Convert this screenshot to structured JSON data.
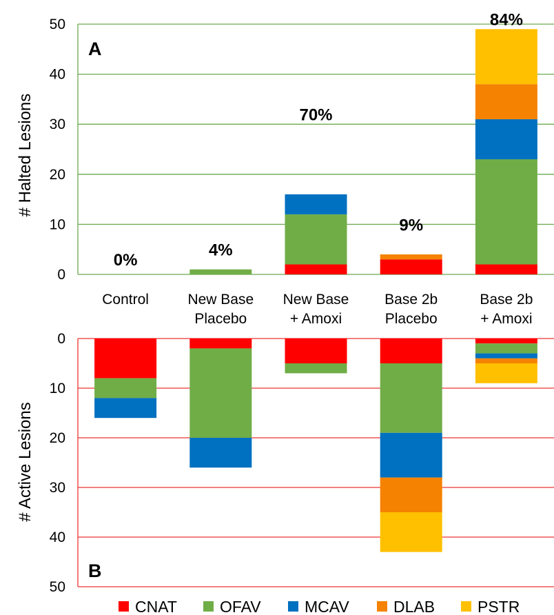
{
  "chart_data": {
    "type": "bar",
    "categories": [
      [
        "Control"
      ],
      [
        "New Base",
        "Placebo"
      ],
      [
        "New Base",
        "+ Amoxi"
      ],
      [
        "Base 2b",
        "Placebo"
      ],
      [
        "Base 2b",
        "+ Amoxi"
      ]
    ],
    "series_names": [
      "CNAT",
      "OFAV",
      "MCAV",
      "DLAB",
      "PSTR"
    ],
    "colors": {
      "CNAT": "#ff0000",
      "OFAV": "#70ad47",
      "MCAV": "#0070c0",
      "DLAB": "#f58200",
      "PSTR": "#ffc000",
      "gridA": "#6aa84f",
      "gridB": "#ee3333"
    },
    "panels": [
      {
        "label": "A",
        "ylabel": "# Halted Lesions",
        "ylim": [
          0,
          50
        ],
        "yticks": [
          "0",
          "10",
          "20",
          "30",
          "40",
          "50"
        ],
        "grid": true,
        "values": {
          "CNAT": [
            0,
            0,
            2,
            3,
            2
          ],
          "OFAV": [
            0,
            1,
            10,
            0,
            21
          ],
          "MCAV": [
            0,
            0,
            4,
            0,
            8
          ],
          "DLAB": [
            0,
            0,
            0,
            1,
            7
          ],
          "PSTR": [
            0,
            0,
            0,
            0,
            11
          ]
        },
        "annotations": [
          {
            "text": "0%",
            "x": 0,
            "y": 3
          },
          {
            "text": "4%",
            "x": 1,
            "y": 5
          },
          {
            "text": "70%",
            "x": 2,
            "y": 32
          },
          {
            "text": "9%",
            "x": 3,
            "y": 10
          },
          {
            "text": "84%",
            "x": 4,
            "y": 51
          }
        ]
      },
      {
        "label": "B",
        "ylabel": "# Active Lesions",
        "ylim": [
          0,
          50
        ],
        "yticks": [
          "0",
          "10",
          "20",
          "30",
          "40",
          "50"
        ],
        "inverted": true,
        "grid": true,
        "values": {
          "CNAT": [
            8,
            2,
            5,
            5,
            1
          ],
          "OFAV": [
            4,
            18,
            2,
            14,
            2
          ],
          "MCAV": [
            4,
            6,
            0,
            9,
            1
          ],
          "DLAB": [
            0,
            0,
            0,
            7,
            1
          ],
          "PSTR": [
            0,
            0,
            0,
            8,
            4
          ]
        }
      }
    ],
    "legend": {
      "position": "bottom",
      "entries": [
        "CNAT",
        "OFAV",
        "MCAV",
        "DLAB",
        "PSTR"
      ]
    }
  }
}
